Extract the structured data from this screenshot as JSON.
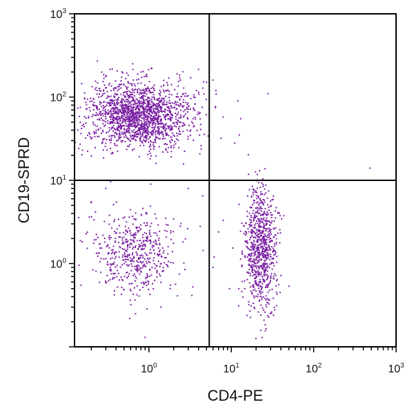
{
  "chart_data": {
    "type": "scatter",
    "xlabel": "CD4-PE",
    "ylabel": "CD19-SPRD",
    "x_scale": "log",
    "y_scale": "log",
    "xlim": [
      0.125,
      1000
    ],
    "ylim": [
      0.1,
      1000
    ],
    "x_ticks": [
      {
        "base": "10",
        "exp": "0"
      },
      {
        "base": "10",
        "exp": "1"
      },
      {
        "base": "10",
        "exp": "2"
      },
      {
        "base": "10",
        "exp": "3"
      }
    ],
    "y_ticks": [
      {
        "base": "10",
        "exp": "0"
      },
      {
        "base": "10",
        "exp": "1"
      },
      {
        "base": "10",
        "exp": "2"
      },
      {
        "base": "10",
        "exp": "3"
      }
    ],
    "quadrant_gate": {
      "x": 5.4,
      "y": 10
    },
    "point_color": "#7a1fa2",
    "line_color": "#000000",
    "populations": [
      {
        "center": [
          0.75,
          60
        ],
        "spread": [
          0.32,
          0.2
        ],
        "count": 1700
      },
      {
        "center": [
          0.7,
          1.3
        ],
        "spread": [
          0.26,
          0.25
        ],
        "count": 520
      },
      {
        "center": [
          23,
          1.5
        ],
        "spread": [
          0.1,
          0.35
        ],
        "count": 800
      }
    ],
    "outlier_points": [
      [
        6.5,
        120
      ],
      [
        12,
        90
      ],
      [
        28,
        110
      ],
      [
        13,
        55
      ],
      [
        11,
        28
      ],
      [
        12.5,
        35
      ],
      [
        22,
        13
      ],
      [
        480,
        14
      ],
      [
        6.0,
        160
      ],
      [
        5.0,
        150
      ],
      [
        3.5,
        100
      ],
      [
        2.2,
        190
      ],
      [
        4.0,
        215
      ],
      [
        3.0,
        8
      ],
      [
        4.5,
        6.5
      ],
      [
        0.15,
        0.55
      ],
      [
        6.2,
        1.2
      ],
      [
        6.0,
        0.9
      ],
      [
        7.0,
        2.4
      ],
      [
        0.9,
        0.13
      ],
      [
        0.3,
        8.0
      ],
      [
        1.6,
        3.5
      ],
      [
        4.2,
        2.8
      ],
      [
        0.2,
        5.5
      ],
      [
        9.5,
        0.5
      ],
      [
        8.0,
        3.3
      ],
      [
        1.4,
        0.3
      ]
    ]
  }
}
